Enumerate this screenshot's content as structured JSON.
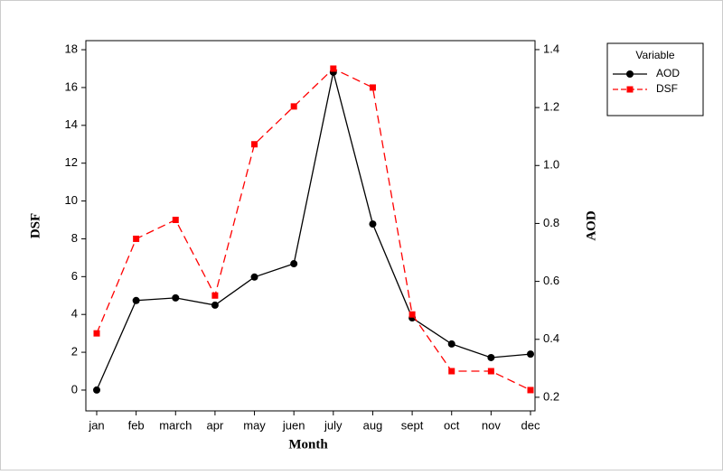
{
  "chart_data": {
    "type": "line",
    "categories": [
      "jan",
      "feb",
      "march",
      "apr",
      "may",
      "juen",
      "july",
      "aug",
      "sept",
      "oct",
      "nov",
      "dec"
    ],
    "x_label": "Month",
    "y_label": "DSF",
    "y2_label": "AOD",
    "legend_title": "Variable",
    "legend": "right",
    "series": [
      {
        "name": "AOD",
        "color": "#000000",
        "axis": "y2",
        "marker": "circle",
        "dash": "solid",
        "values": [
          0.225,
          0.534,
          0.543,
          0.518,
          0.615,
          0.661,
          1.322,
          0.798,
          0.474,
          0.384,
          0.337,
          0.349
        ]
      },
      {
        "name": "DSF",
        "color": "#ff0000",
        "marker": "square",
        "dash": "dashed",
        "values": [
          3.0,
          8.0,
          9.0,
          5.0,
          13.0,
          15.0,
          17.0,
          16.0,
          4.0,
          1.0,
          1.0,
          0.0
        ]
      }
    ],
    "ylim": [
      -1.1,
      18.48
    ],
    "yticks": [
      0,
      2,
      4,
      6,
      8,
      10,
      12,
      14,
      16,
      18
    ],
    "y2lim": [
      0.153,
      1.431
    ],
    "y2ticks": [
      0.2,
      0.4,
      0.6,
      0.8,
      {
        "value": 1,
        "label": "1.0"
      },
      1.2,
      1.4
    ]
  }
}
